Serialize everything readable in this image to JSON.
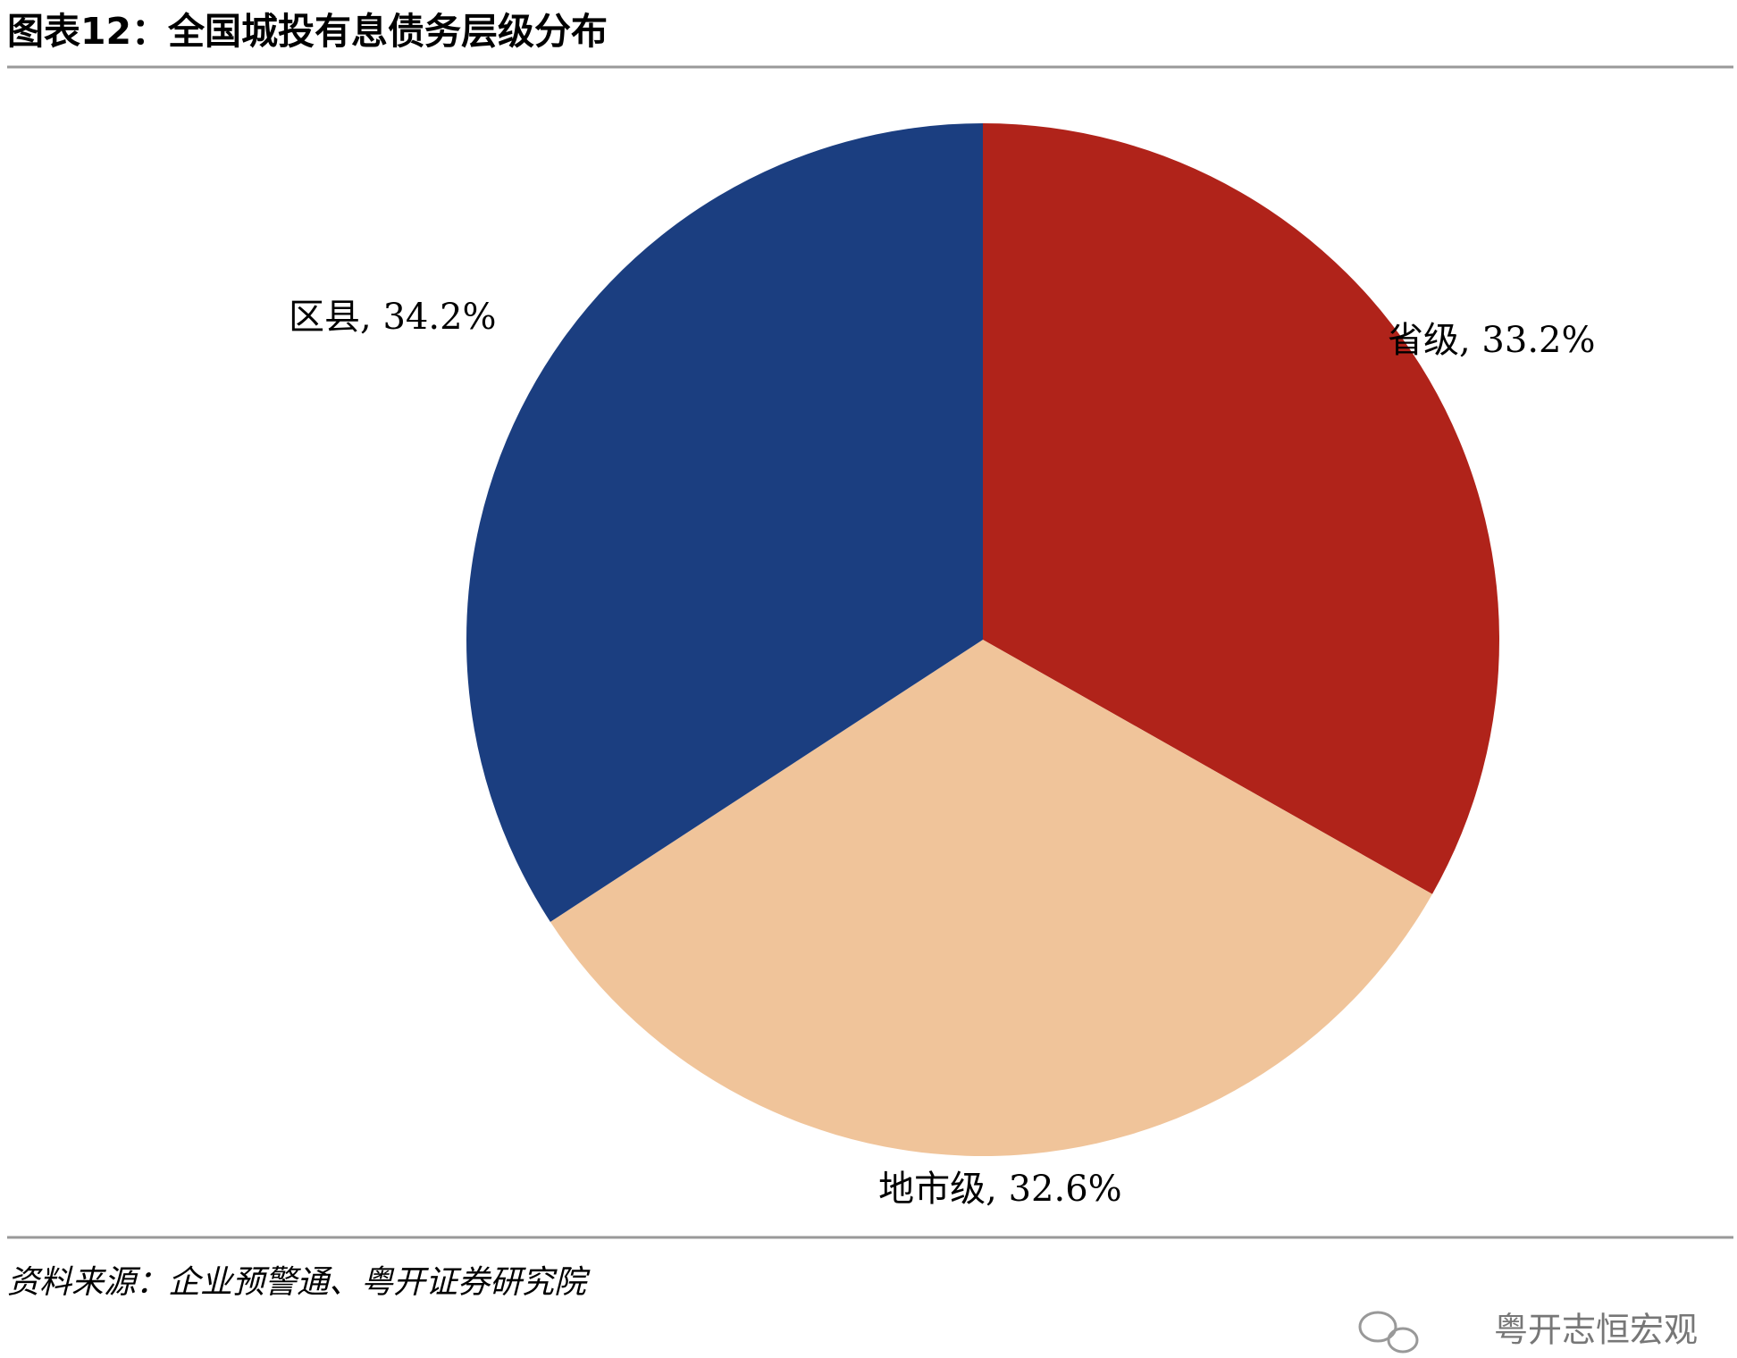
{
  "title": "图表12：全国城投有息债务层级分布",
  "chart_data": {
    "type": "pie",
    "values": [
      33.2,
      32.6,
      34.2
    ],
    "value_labels": [
      "省级, 33.2%",
      "地市级, 32.6%",
      "区县, 34.2%"
    ],
    "colors": [
      "#B0231A",
      "#F0C49A",
      "#1B3E80"
    ]
  },
  "source": "资料来源：企业预警通、粤开证券研究院",
  "watermark": "粤开志恒宏观"
}
